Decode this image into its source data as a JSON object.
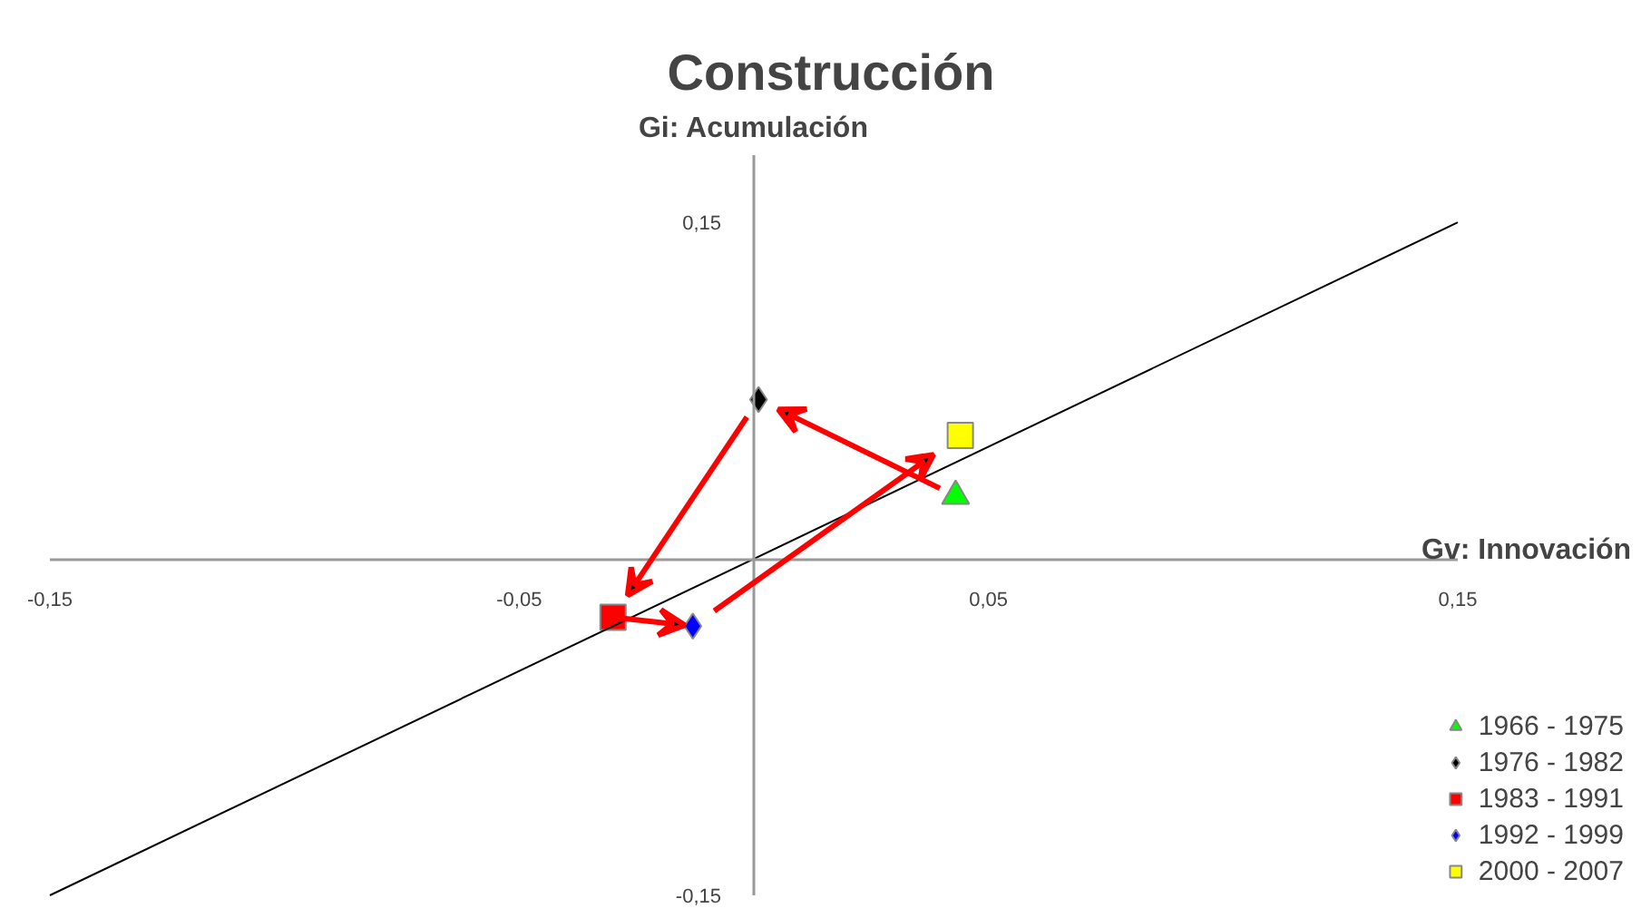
{
  "chart_data": {
    "type": "scatter",
    "title": "Construcción",
    "xlabel": "Gv: Innovación",
    "ylabel": "Gi: Acumulación",
    "xlim": [
      -0.15,
      0.15
    ],
    "ylim": [
      -0.15,
      0.18
    ],
    "xticks": [
      {
        "value": -0.15,
        "label": "-0,15"
      },
      {
        "value": -0.05,
        "label": "-0,05"
      },
      {
        "value": 0.05,
        "label": "0,05"
      },
      {
        "value": 0.15,
        "label": "0,15"
      }
    ],
    "yticks": [
      {
        "value": -0.15,
        "label": "-0,15"
      },
      {
        "value": 0.15,
        "label": "0,15"
      }
    ],
    "legend": "bottom right",
    "series": [
      {
        "name": "1966 - 1975",
        "color": "#00ff00",
        "marker": "triangle",
        "x": [
          0.043
        ],
        "values": [
          0.028
        ]
      },
      {
        "name": "1976 - 1982",
        "color": "#000000",
        "marker": "diamond",
        "x": [
          0.001
        ],
        "values": [
          0.071
        ]
      },
      {
        "name": "1983 - 1991",
        "color": "#ff0000",
        "marker": "square",
        "x": [
          -0.03
        ],
        "values": [
          -0.026
        ]
      },
      {
        "name": "1992 - 1999",
        "color": "#0000ff",
        "marker": "diamond",
        "x": [
          -0.013
        ],
        "values": [
          -0.03
        ]
      },
      {
        "name": "2000 - 2007",
        "color": "#ffff00",
        "marker": "square",
        "x": [
          0.044
        ],
        "values": [
          0.055
        ]
      },
      {
        "type": "line",
        "color": "#000000",
        "x": [
          -0.15,
          0.15
        ],
        "values": [
          -0.15,
          0.15
        ]
      }
    ]
  }
}
